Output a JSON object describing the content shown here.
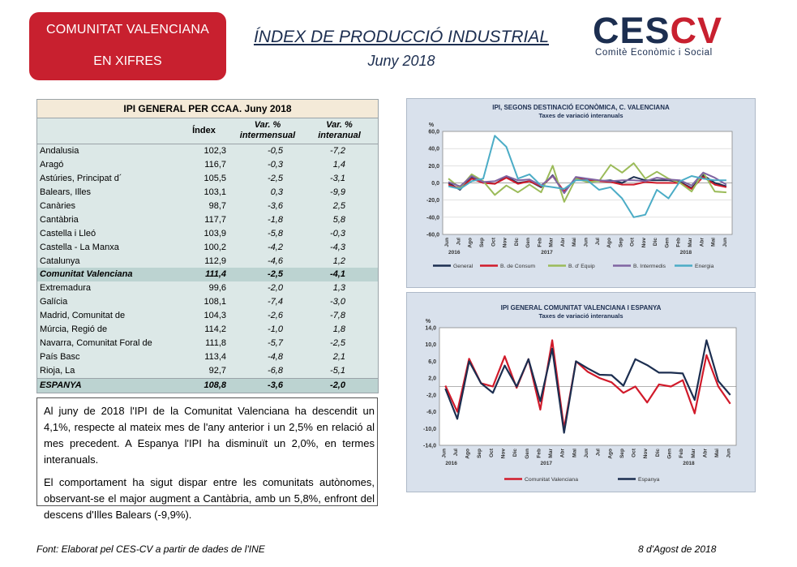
{
  "badge": {
    "line1": "COMUNITAT VALENCIANA",
    "line2": "EN XIFRES"
  },
  "header": {
    "title": "ÍNDEX DE PRODUCCIÓ INDUSTRIAL",
    "subtitle": "Juny 2018"
  },
  "logo": {
    "brand_a": "CES",
    "brand_b": "CV",
    "tagline": "Comitè Econòmic i Social"
  },
  "table": {
    "title": "IPI GENERAL PER CCAA. Juny 2018",
    "headers": [
      "Índex",
      "Var. % intermensual",
      "Var. % interanual"
    ],
    "rows": [
      {
        "name": "Andalusia",
        "index": "102,3",
        "mom": "-0,5",
        "yoy": "-7,2"
      },
      {
        "name": "Aragó",
        "index": "116,7",
        "mom": "-0,3",
        "yoy": "1,4"
      },
      {
        "name": "Astúries, Principat d´",
        "index": "105,5",
        "mom": "-2,5",
        "yoy": "-3,1"
      },
      {
        "name": "Balears, Illes",
        "index": "103,1",
        "mom": "0,3",
        "yoy": "-9,9"
      },
      {
        "name": "Canàries",
        "index": "98,7",
        "mom": "-3,6",
        "yoy": "2,5"
      },
      {
        "name": "Cantàbria",
        "index": "117,7",
        "mom": "-1,8",
        "yoy": "5,8"
      },
      {
        "name": "Castella i Lleó",
        "index": "103,9",
        "mom": "-5,8",
        "yoy": "-0,3"
      },
      {
        "name": "Castella - La Manxa",
        "index": "100,2",
        "mom": "-4,2",
        "yoy": "-4,3"
      },
      {
        "name": "Catalunya",
        "index": "112,9",
        "mom": "-4,6",
        "yoy": "1,2"
      },
      {
        "name": "Comunitat Valenciana",
        "index": "111,4",
        "mom": "-2,5",
        "yoy": "-4,1",
        "highlight": true
      },
      {
        "name": "Extremadura",
        "index": "99,6",
        "mom": "-2,0",
        "yoy": "1,3"
      },
      {
        "name": "Galícia",
        "index": "108,1",
        "mom": "-7,4",
        "yoy": "-3,0"
      },
      {
        "name": "Madrid, Comunitat de",
        "index": "104,3",
        "mom": "-2,6",
        "yoy": "-7,8"
      },
      {
        "name": "Múrcia, Regió de",
        "index": "114,2",
        "mom": "-1,0",
        "yoy": "1,8"
      },
      {
        "name": "Navarra, Comunitat Foral de",
        "index": "111,8",
        "mom": "-5,7",
        "yoy": "-2,5"
      },
      {
        "name": "País Basc",
        "index": "113,4",
        "mom": "-4,8",
        "yoy": "2,1"
      },
      {
        "name": "Rioja, La",
        "index": "92,7",
        "mom": "-6,8",
        "yoy": "-5,1"
      },
      {
        "name": "ESPANYA",
        "index": "108,8",
        "mom": "-3,6",
        "yoy": "-2,0",
        "highlight": true
      }
    ]
  },
  "text": {
    "p1": "Al juny de 2018 l'IPI de la Comunitat Valenciana ha descendit un 4,1%, respecte al mateix mes de l'any anterior i un 2,5% en relació al mes precedent. A Espanya l'IPI ha disminuït un 2,0%, en termes interanuals.",
    "p2": "El comportament ha sigut dispar entre les comunitats autònomes, observant-se el major augment a Cantàbria, amb un 5,8%, enfront del descens d'Illes Balears (-9,9%)."
  },
  "footer": {
    "source": "Font: Elaborat pel CES-CV a partir de dades de l'INE",
    "date": "8 d'Agost de 2018"
  },
  "chart_data": [
    {
      "type": "line",
      "title": "IPI, SEGONS DESTINACIÓ ECONÒMICA, C. VALENCIANA",
      "subtitle": "Taxes de variació interanuals",
      "ylabel": "%",
      "ylim": [
        -60,
        60
      ],
      "yticks": [
        "60,0",
        "40,0",
        "20,0",
        "0,0",
        "-20,0",
        "-40,0",
        "-60,0"
      ],
      "categories": [
        "Jun",
        "Jul",
        "Ago",
        "Sep",
        "Oct",
        "Nov",
        "Dic",
        "Gen",
        "Feb",
        "Mar",
        "Abr",
        "Mai",
        "Jun",
        "Jul",
        "Ago",
        "Sep",
        "Oct",
        "Nov",
        "Dic",
        "Gen",
        "Feb",
        "Mar",
        "Abr",
        "Mai",
        "Jun"
      ],
      "year_labels": [
        "2016",
        "2017",
        "2018"
      ],
      "grid": true,
      "legend": "bottom",
      "series": [
        {
          "name": "General",
          "color": "#1c2e50",
          "values": [
            0,
            -8,
            7,
            1,
            -1,
            7,
            0,
            2,
            -5,
            9,
            -11,
            6,
            4,
            2,
            3,
            0,
            7,
            3,
            3,
            3,
            1,
            -6,
            9,
            0,
            -4
          ]
        },
        {
          "name": "B. de Consum",
          "color": "#d11a2a",
          "values": [
            -2,
            -7,
            5,
            0,
            -1,
            6,
            -1,
            2,
            -4,
            8,
            -10,
            5,
            3,
            2,
            1,
            -2,
            -2,
            1,
            0,
            0,
            0,
            -7,
            7,
            -2,
            -5
          ]
        },
        {
          "name": "B. d' Equip",
          "color": "#9bbb59",
          "values": [
            5,
            -6,
            10,
            2,
            -14,
            -3,
            -11,
            -2,
            -11,
            20,
            -22,
            5,
            1,
            2,
            21,
            12,
            23,
            5,
            13,
            5,
            0,
            -10,
            12,
            -10,
            -11
          ]
        },
        {
          "name": "B. Intermedis",
          "color": "#8064a2",
          "values": [
            1,
            -4,
            8,
            1,
            2,
            8,
            3,
            4,
            -3,
            8,
            -12,
            7,
            5,
            3,
            2,
            3,
            3,
            2,
            6,
            4,
            3,
            -3,
            12,
            6,
            -2
          ]
        },
        {
          "name": "Energia",
          "color": "#4bacc6",
          "values": [
            -4,
            -7,
            2,
            5,
            55,
            42,
            5,
            10,
            -3,
            -5,
            -7,
            3,
            3,
            -8,
            -5,
            -18,
            -40,
            -37,
            -8,
            -18,
            2,
            8,
            5,
            3,
            3
          ]
        }
      ]
    },
    {
      "type": "line",
      "title": "IPI GENERAL COMUNITAT VALENCIANA I ESPANYA",
      "subtitle": "Taxes de variació interanuals",
      "ylabel": "%",
      "ylim": [
        -14,
        14
      ],
      "yticks": [
        "14,0",
        "10,0",
        "6,0",
        "2,0",
        "-2,0",
        "-6,0",
        "-10,0",
        "-14,0"
      ],
      "categories": [
        "Jun",
        "Jul",
        "Ago",
        "Sep",
        "Oct",
        "Nov",
        "Dic",
        "Gen",
        "Feb",
        "Mar",
        "Abr",
        "Mai",
        "Jun",
        "Jul",
        "Ago",
        "Sep",
        "Oct",
        "Nov",
        "Dic",
        "Gen",
        "Feb",
        "Mar",
        "Abr",
        "Mai",
        "Jun"
      ],
      "year_labels": [
        "2016",
        "2017",
        "2018"
      ],
      "grid": false,
      "legend": "bottom",
      "series": [
        {
          "name": "Comunitat Valenciana",
          "color": "#d11a2a",
          "values": [
            0.2,
            -6,
            6.6,
            0.8,
            0,
            7.2,
            -0.3,
            6.5,
            -5.5,
            11,
            -10,
            6,
            3.5,
            2,
            1,
            -1.5,
            0,
            -3.8,
            0.5,
            0,
            1.5,
            -6.4,
            7.5,
            0,
            -4.1
          ]
        },
        {
          "name": "Espanya",
          "color": "#1c2e50",
          "values": [
            -0.5,
            -7.7,
            6,
            0.8,
            -1.5,
            5,
            0,
            6.5,
            -3.5,
            9,
            -11,
            6,
            4.3,
            2.8,
            2.7,
            0.2,
            6.5,
            5.1,
            3.3,
            3.3,
            3.1,
            -3.2,
            11,
            1.3,
            -2
          ]
        }
      ]
    }
  ]
}
